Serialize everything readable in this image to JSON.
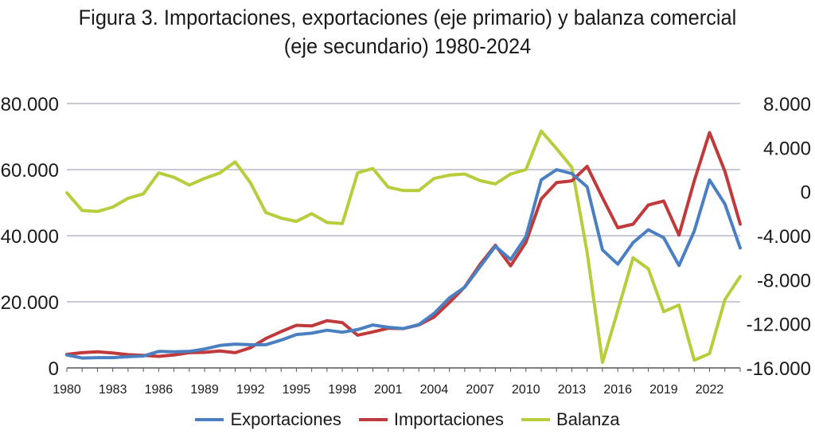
{
  "title_line1": "Figura 3. Importaciones, exportaciones (eje primario) y balanza comercial",
  "title_line2": "(eje secundario) 1980-2024",
  "colors": {
    "exportaciones": "#4a7fc1",
    "importaciones": "#c0393b",
    "balanza": "#b8cc3c",
    "grid": "#c8c8d6",
    "axis": "#555555"
  },
  "chart_data": {
    "type": "line",
    "title": "Figura 3. Importaciones, exportaciones (eje primario) y balanza comercial (eje secundario) 1980-2024",
    "x": [
      1980,
      1981,
      1982,
      1983,
      1984,
      1985,
      1986,
      1987,
      1988,
      1989,
      1990,
      1991,
      1992,
      1993,
      1994,
      1995,
      1996,
      1997,
      1998,
      1999,
      2000,
      2001,
      2002,
      2003,
      2004,
      2005,
      2006,
      2007,
      2008,
      2009,
      2010,
      2011,
      2012,
      2013,
      2014,
      2015,
      2016,
      2017,
      2018,
      2019,
      2020,
      2021,
      2022,
      2023,
      2024
    ],
    "x_tick_labels": [
      "1980",
      "1983",
      "1986",
      "1989",
      "1992",
      "1995",
      "1998",
      "2001",
      "2004",
      "2007",
      "2010",
      "2013",
      "2016",
      "2019",
      "2022"
    ],
    "y_left": {
      "ylim": [
        0,
        80000
      ],
      "ticks": [
        "0",
        "20.000",
        "40.000",
        "60.000",
        "80.000"
      ]
    },
    "y_right": {
      "ylim": [
        -16000,
        8000
      ],
      "ticks": [
        "-16.000",
        "-12.000",
        "-8.000",
        "-4.000",
        "0",
        "4.000",
        "8.000"
      ]
    },
    "legend_position": "bottom",
    "grid": true,
    "series": [
      {
        "name": "Exportaciones",
        "axis": "left",
        "values": [
          3900,
          3000,
          3100,
          3100,
          3400,
          3600,
          5000,
          4900,
          5000,
          5700,
          6800,
          7200,
          7000,
          7000,
          8400,
          10100,
          10500,
          11400,
          10800,
          11600,
          13000,
          12300,
          11900,
          13100,
          16500,
          21200,
          24400,
          30600,
          36800,
          32800,
          39700,
          56900,
          60000,
          58800,
          54800,
          35700,
          31400,
          37900,
          41800,
          39400,
          31000,
          41400,
          56900,
          49600,
          36300
        ]
      },
      {
        "name": "Importaciones",
        "axis": "left",
        "values": [
          4100,
          4600,
          4900,
          4500,
          4000,
          3800,
          3500,
          3900,
          4600,
          4700,
          5100,
          4600,
          6100,
          8900,
          11000,
          12900,
          12700,
          14300,
          13700,
          9900,
          10900,
          12000,
          11900,
          13000,
          15400,
          19800,
          24500,
          31300,
          37100,
          30900,
          38000,
          51100,
          56100,
          56600,
          61000,
          51500,
          42400,
          43500,
          49300,
          50500,
          40200,
          56600,
          71200,
          59500,
          43500
        ]
      },
      {
        "name": "Balanza",
        "axis": "right",
        "values": [
          -100,
          -1700,
          -1800,
          -1400,
          -600,
          -200,
          1700,
          1300,
          600,
          1200,
          1700,
          2700,
          800,
          -1900,
          -2400,
          -2700,
          -2000,
          -2800,
          -2900,
          1700,
          2100,
          400,
          100,
          100,
          1200,
          1500,
          1600,
          1000,
          700,
          1600,
          2000,
          5500,
          3900,
          2200,
          -5500,
          -15500,
          -10800,
          -6000,
          -7000,
          -10900,
          -10300,
          -15300,
          -14700,
          -9800,
          -7700
        ]
      }
    ]
  },
  "legend": [
    "Exportaciones",
    "Importaciones",
    "Balanza"
  ]
}
